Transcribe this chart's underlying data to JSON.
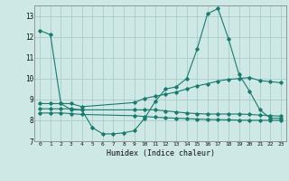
{
  "background_color": "#cde8e5",
  "grid_color": "#a8ccca",
  "line_color": "#1a7a6e",
  "xlabel": "Humidex (Indice chaleur)",
  "xlim": [
    -0.5,
    23.5
  ],
  "ylim": [
    7,
    13.5
  ],
  "xticks": [
    0,
    1,
    2,
    3,
    4,
    5,
    6,
    7,
    8,
    9,
    10,
    11,
    12,
    13,
    14,
    15,
    16,
    17,
    18,
    19,
    20,
    21,
    22,
    23
  ],
  "yticks": [
    7,
    8,
    9,
    10,
    11,
    12,
    13
  ],
  "series": [
    {
      "x": [
        0,
        1,
        2,
        3,
        4,
        5,
        6,
        7,
        8,
        9,
        10,
        11,
        12,
        13,
        14,
        15,
        16,
        17,
        18,
        19,
        20,
        21,
        22,
        23
      ],
      "y": [
        12.3,
        12.1,
        8.8,
        8.5,
        8.5,
        7.65,
        7.35,
        7.35,
        7.4,
        7.5,
        8.1,
        8.9,
        9.5,
        9.6,
        10.0,
        11.4,
        13.1,
        13.35,
        11.9,
        10.2,
        9.4,
        8.5,
        8.1,
        8.1
      ]
    },
    {
      "x": [
        0,
        1,
        2,
        3,
        4,
        9,
        10,
        11,
        12,
        13,
        14,
        15,
        16,
        17,
        18,
        19,
        20,
        21,
        22,
        23
      ],
      "y": [
        8.8,
        8.8,
        8.8,
        8.8,
        8.65,
        8.85,
        9.05,
        9.15,
        9.25,
        9.35,
        9.5,
        9.65,
        9.75,
        9.88,
        9.96,
        10.0,
        10.05,
        9.9,
        9.85,
        9.8
      ]
    },
    {
      "x": [
        0,
        1,
        2,
        3,
        4,
        9,
        10,
        11,
        12,
        13,
        14,
        15,
        16,
        17,
        18,
        19,
        20,
        21,
        22,
        23
      ],
      "y": [
        8.55,
        8.55,
        8.55,
        8.55,
        8.5,
        8.5,
        8.5,
        8.5,
        8.45,
        8.4,
        8.35,
        8.32,
        8.3,
        8.3,
        8.3,
        8.3,
        8.28,
        8.25,
        8.22,
        8.2
      ]
    },
    {
      "x": [
        0,
        1,
        2,
        3,
        4,
        9,
        10,
        11,
        12,
        13,
        14,
        15,
        16,
        17,
        18,
        19,
        20,
        21,
        22,
        23
      ],
      "y": [
        8.35,
        8.35,
        8.35,
        8.32,
        8.28,
        8.22,
        8.18,
        8.15,
        8.12,
        8.1,
        8.08,
        8.06,
        8.04,
        8.03,
        8.02,
        8.01,
        8.0,
        8.0,
        8.0,
        8.0
      ]
    }
  ]
}
